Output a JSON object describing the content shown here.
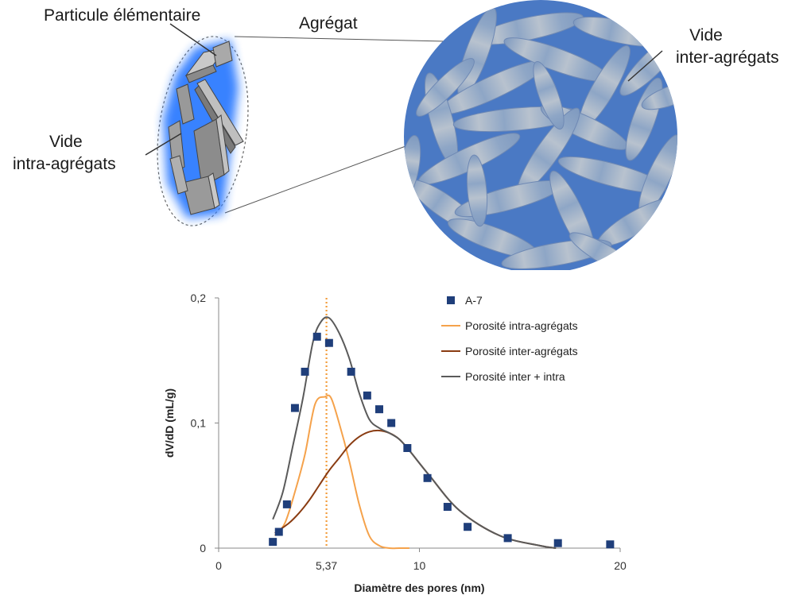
{
  "illustration": {
    "labels": {
      "particle": "Particule élémentaire",
      "aggregate": "Agrégat",
      "inter_void": [
        "Vide",
        "inter-agrégats"
      ],
      "intra_void": [
        "Vide",
        "intra-agrégats"
      ]
    },
    "colors": {
      "aggregate_fill": "#4a79c4",
      "rod_fill": "#9fb1c6",
      "particle_fill": "#8a8a8a",
      "particle_glow": "#2f7cff"
    }
  },
  "chart_data": {
    "type": "line",
    "xlabel": "Diamètre des pores (nm)",
    "ylabel": "dV/dD (mL/g)",
    "xlim": [
      0,
      20
    ],
    "ylim": [
      0,
      0.2
    ],
    "xticks": [
      0,
      10,
      20
    ],
    "yticks": [
      0,
      0.1,
      0.2
    ],
    "xtick_labels": [
      "0",
      "10",
      "20"
    ],
    "ytick_labels": [
      "0",
      "0,1",
      "0,2"
    ],
    "grid": false,
    "legend_position": "top-right",
    "annotations": [
      {
        "type": "vertical-dotted-line",
        "x": 5.37,
        "label": "5,37",
        "color": "#f39c3a"
      }
    ],
    "series": [
      {
        "name": "A-7",
        "kind": "scatter",
        "marker": "square",
        "color": "#1f3e7a",
        "x": [
          2.7,
          3.0,
          3.4,
          3.8,
          4.3,
          4.9,
          5.5,
          6.6,
          7.4,
          8.0,
          8.6,
          9.4,
          10.4,
          11.4,
          12.4,
          14.4,
          16.9,
          19.5
        ],
        "y": [
          0.005,
          0.013,
          0.035,
          0.112,
          0.141,
          0.169,
          0.164,
          0.141,
          0.122,
          0.111,
          0.1,
          0.08,
          0.056,
          0.033,
          0.017,
          0.008,
          0.004,
          0.003
        ]
      },
      {
        "name": "Porosité intra-agrégats",
        "kind": "line",
        "color": "#f5a24b",
        "x": [
          2.8,
          3.3,
          3.8,
          4.3,
          4.8,
          5.3,
          5.6,
          6.0,
          6.5,
          7.0,
          7.5,
          8.0,
          8.5,
          9.0,
          9.5
        ],
        "y": [
          0.01,
          0.02,
          0.045,
          0.075,
          0.115,
          0.121,
          0.12,
          0.1,
          0.07,
          0.035,
          0.01,
          0.002,
          0.0,
          0.0,
          0.0
        ]
      },
      {
        "name": "Porosité inter-agrégats",
        "kind": "line",
        "color": "#8a3c12",
        "x": [
          2.8,
          3.5,
          4.0,
          4.5,
          5.0,
          5.5,
          6.0,
          6.5,
          7.0,
          7.5,
          8.0,
          8.5,
          9.0,
          9.5,
          10.5,
          12.0,
          14.0,
          16.0,
          16.8
        ],
        "y": [
          0.012,
          0.02,
          0.028,
          0.038,
          0.05,
          0.062,
          0.072,
          0.082,
          0.089,
          0.093,
          0.094,
          0.092,
          0.087,
          0.078,
          0.058,
          0.03,
          0.01,
          0.002,
          0.0
        ]
      },
      {
        "name": "Porosité inter + intra",
        "kind": "line",
        "color": "#5a5a5a",
        "x": [
          2.7,
          3.2,
          3.7,
          4.2,
          4.7,
          5.1,
          5.5,
          6.0,
          6.5,
          7.0,
          7.5,
          8.0,
          8.5,
          9.0,
          9.5,
          10.5,
          12.0,
          14.0,
          16.0,
          16.8
        ],
        "y": [
          0.023,
          0.045,
          0.082,
          0.12,
          0.165,
          0.181,
          0.184,
          0.172,
          0.152,
          0.124,
          0.103,
          0.096,
          0.092,
          0.087,
          0.078,
          0.058,
          0.03,
          0.01,
          0.002,
          0.0
        ]
      }
    ]
  }
}
